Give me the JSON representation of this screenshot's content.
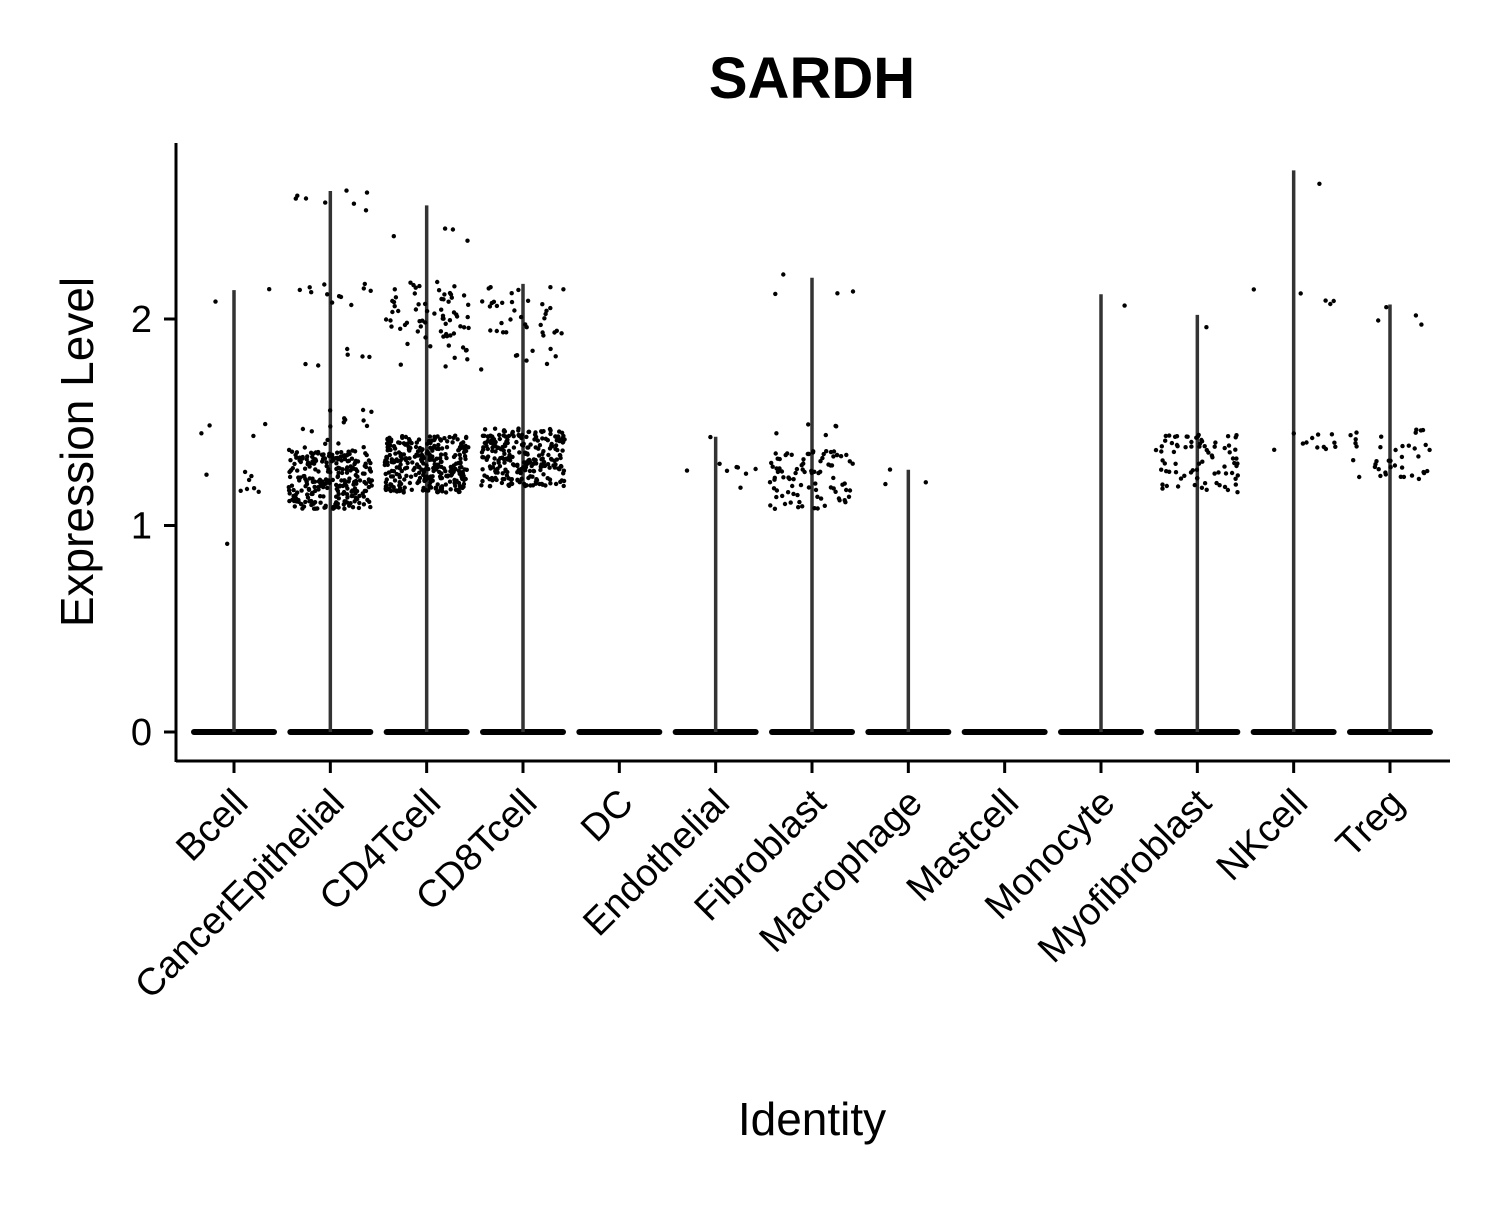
{
  "chart_data": {
    "type": "violin",
    "title": "SARDH",
    "xlabel": "Identity",
    "ylabel": "Expression Level",
    "ylim": [
      -0.13,
      2.85
    ],
    "yticks": [
      0,
      1,
      2
    ],
    "grid": false,
    "legend": "none",
    "categories": [
      "Bcell",
      "CancerEpithelial",
      "CD4Tcell",
      "CD8Tcell",
      "DC",
      "Endothelial",
      "Fibroblast",
      "Macrophage",
      "Mastcell",
      "Monocyte",
      "Myofibroblast",
      "NKcell",
      "Treg"
    ],
    "max_expression": [
      2.14,
      2.62,
      2.55,
      2.17,
      0,
      1.43,
      2.2,
      1.27,
      0,
      2.12,
      2.02,
      2.72,
      2.07
    ],
    "expressing_clusters": [
      [
        {
          "y": 1.2,
          "n": 8
        },
        {
          "y": 1.45,
          "n": 4
        },
        {
          "y": 2.1,
          "n": 2
        },
        {
          "y": 0.92,
          "n": 1
        }
      ],
      [
        {
          "y": 1.22,
          "n": 260
        },
        {
          "y": 1.42,
          "n": 25
        },
        {
          "y": 1.8,
          "n": 6
        },
        {
          "y": 2.12,
          "n": 12
        },
        {
          "y": 2.58,
          "n": 8
        }
      ],
      [
        {
          "y": 1.3,
          "n": 320
        },
        {
          "y": 1.82,
          "n": 10
        },
        {
          "y": 2.05,
          "n": 60
        },
        {
          "y": 2.4,
          "n": 4
        }
      ],
      [
        {
          "y": 1.33,
          "n": 260
        },
        {
          "y": 1.8,
          "n": 8
        },
        {
          "y": 2.05,
          "n": 35
        }
      ],
      [],
      [
        {
          "y": 1.24,
          "n": 8
        },
        {
          "y": 1.42,
          "n": 1
        }
      ],
      [
        {
          "y": 1.22,
          "n": 90
        },
        {
          "y": 1.45,
          "n": 5
        },
        {
          "y": 2.18,
          "n": 4
        }
      ],
      [
        {
          "y": 1.25,
          "n": 3
        }
      ],
      [],
      [
        {
          "y": 2.12,
          "n": 1
        }
      ],
      [
        {
          "y": 1.3,
          "n": 80
        },
        {
          "y": 2.02,
          "n": 1
        }
      ],
      [
        {
          "y": 1.4,
          "n": 12
        },
        {
          "y": 2.1,
          "n": 5
        },
        {
          "y": 2.7,
          "n": 1
        }
      ],
      [
        {
          "y": 1.35,
          "n": 40
        },
        {
          "y": 2.0,
          "n": 4
        }
      ]
    ]
  }
}
